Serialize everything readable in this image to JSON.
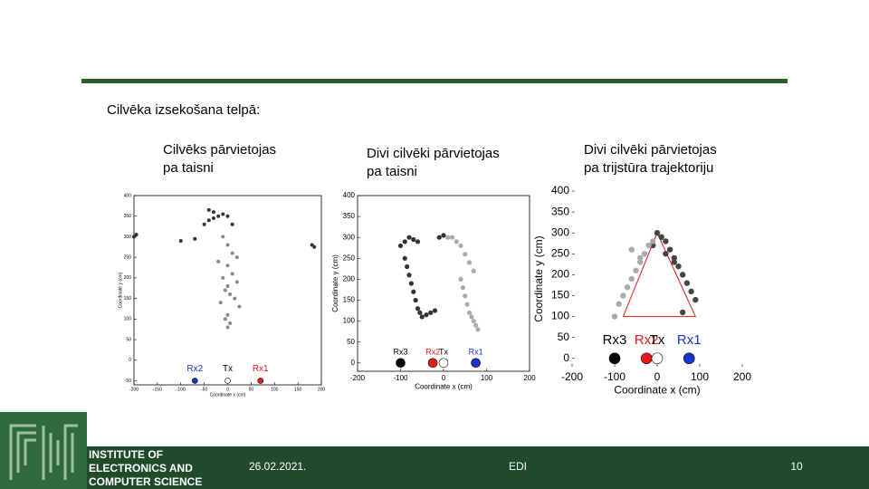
{
  "header": {
    "title": "Cilvēka izsekošana telpā:"
  },
  "panels": [
    {
      "caption": [
        "Cilvēks pārvietojas",
        "pa taisni"
      ],
      "chart": {
        "type": "scatter",
        "xlabel": "Coordinate x (cm)",
        "ylabel": "Coordinate y (cm)",
        "xlim": [
          -200,
          200
        ],
        "ylim": [
          -60,
          400
        ],
        "xticks": [
          -200,
          -150,
          -100,
          -50,
          0,
          50,
          100,
          150,
          200
        ],
        "yticks": [
          -50,
          0,
          50,
          100,
          150,
          200,
          250,
          300,
          350,
          400
        ],
        "series": [
          {
            "color": "#333333",
            "x": [
              -200,
              -195,
              -100,
              -70,
              -50,
              -40,
              -30,
              -20,
              -10,
              0,
              10,
              -30,
              -40,
              180,
              185
            ],
            "y": [
              300,
              305,
              290,
              295,
              330,
              340,
              345,
              350,
              355,
              350,
              330,
              360,
              365,
              280,
              275
            ]
          },
          {
            "color": "#888888",
            "x": [
              -10,
              0,
              10,
              20,
              -20,
              0,
              10,
              -10,
              20,
              0,
              -5,
              5,
              15,
              -15,
              25,
              0,
              -5,
              5,
              0
            ],
            "y": [
              300,
              280,
              260,
              250,
              240,
              230,
              210,
              200,
              190,
              180,
              170,
              160,
              150,
              140,
              130,
              110,
              100,
              90,
              80
            ]
          }
        ],
        "markers": [
          {
            "label": "Rx2",
            "x": -70,
            "y": -50,
            "color": "#1a33cc",
            "text_color": "#1a33cc"
          },
          {
            "label": "Tx",
            "x": 0,
            "y": -50,
            "color": "#ffffff",
            "text_color": "#000000"
          },
          {
            "label": "Rx1",
            "x": 70,
            "y": -50,
            "color": "#e31a1c",
            "text_color": "#e31a1c"
          }
        ]
      }
    },
    {
      "caption": [
        "Divi cilvēki pārvietojas",
        "pa taisni"
      ],
      "chart": {
        "type": "scatter",
        "xlabel": "Coordinate x (cm)",
        "ylabel": "Coordinate y (cm)",
        "xlim": [
          -200,
          200
        ],
        "ylim": [
          -20,
          400
        ],
        "xticks": [
          -200,
          -100,
          0,
          100,
          200
        ],
        "yticks": [
          0,
          50,
          100,
          150,
          200,
          250,
          300,
          350,
          400
        ],
        "series": [
          {
            "color": "#333333",
            "x": [
              -100,
              -90,
              -80,
              -70,
              -60,
              -90,
              -85,
              -80,
              -75,
              -70,
              -65,
              -60,
              -55,
              -50,
              -40,
              -30,
              -20,
              -10,
              0
            ],
            "y": [
              280,
              290,
              300,
              295,
              290,
              250,
              230,
              210,
              190,
              170,
              150,
              130,
              120,
              110,
              115,
              120,
              125,
              300,
              305
            ]
          },
          {
            "color": "#aaaaaa",
            "x": [
              20,
              30,
              40,
              50,
              60,
              70,
              40,
              45,
              50,
              55,
              60,
              65,
              70,
              75,
              80,
              10
            ],
            "y": [
              300,
              290,
              280,
              260,
              240,
              220,
              200,
              180,
              160,
              140,
              120,
              110,
              100,
              90,
              80,
              300
            ]
          }
        ],
        "markers": [
          {
            "label": "Rx3",
            "x": -100,
            "y": 0,
            "color": "#000000",
            "text_color": "#000000"
          },
          {
            "label": "Rx2",
            "x": -25,
            "y": 0,
            "color": "#e31a1c",
            "text_color": "#e31a1c"
          },
          {
            "label": "Tx",
            "x": 0,
            "y": 0,
            "color": "#ffffff",
            "text_color": "#000000"
          },
          {
            "label": "Rx1",
            "x": 75,
            "y": 0,
            "color": "#1a33cc",
            "text_color": "#1a33cc"
          }
        ]
      }
    },
    {
      "caption": [
        "Divi cilvēki pārvietojas",
        "pa trijstūra trajektoriju"
      ],
      "chart": {
        "type": "scatter",
        "xlabel": "Coordinate x (cm)",
        "ylabel": "Coordinate y (cm)",
        "xlim": [
          -200,
          200
        ],
        "ylim": [
          -20,
          400
        ],
        "xticks": [
          -200,
          -100,
          0,
          100,
          200
        ],
        "yticks": [
          0,
          50,
          100,
          150,
          200,
          250,
          300,
          350,
          400
        ],
        "series": [
          {
            "color": "#444444",
            "x": [
              0,
              10,
              20,
              30,
              40,
              50,
              60,
              70,
              80,
              90,
              -10,
              20,
              40,
              60
            ],
            "y": [
              300,
              290,
              280,
              260,
              240,
              220,
              200,
              180,
              160,
              140,
              270,
              250,
              230,
              110
            ]
          },
          {
            "color": "#aaaaaa",
            "x": [
              -10,
              -20,
              -30,
              -40,
              -50,
              -60,
              -70,
              -80,
              -90,
              -100,
              -60,
              -40
            ],
            "y": [
              280,
              270,
              250,
              230,
              210,
              190,
              170,
              150,
              130,
              100,
              260,
              240
            ]
          }
        ],
        "trajectory": {
          "color": "#e31a1c",
          "x": [
            -80,
            0,
            90,
            -80
          ],
          "y": [
            100,
            300,
            100,
            100
          ]
        },
        "markers": [
          {
            "label": "Rx3",
            "x": -100,
            "y": 0,
            "color": "#000000",
            "text_color": "#000000"
          },
          {
            "label": "Rx2",
            "x": -25,
            "y": 0,
            "color": "#e31a1c",
            "text_color": "#e31a1c"
          },
          {
            "label": "Tx",
            "x": 0,
            "y": 0,
            "color": "#ffffff",
            "text_color": "#000000"
          },
          {
            "label": "Rx1",
            "x": 75,
            "y": 0,
            "color": "#1a33cc",
            "text_color": "#1a33cc"
          }
        ]
      }
    }
  ],
  "footer": {
    "institute": [
      "INSTITUTE OF",
      "ELECTRONICS AND",
      "COMPUTER SCIENCE"
    ],
    "date": "26.02.2021.",
    "center": "EDI",
    "page": "10"
  }
}
